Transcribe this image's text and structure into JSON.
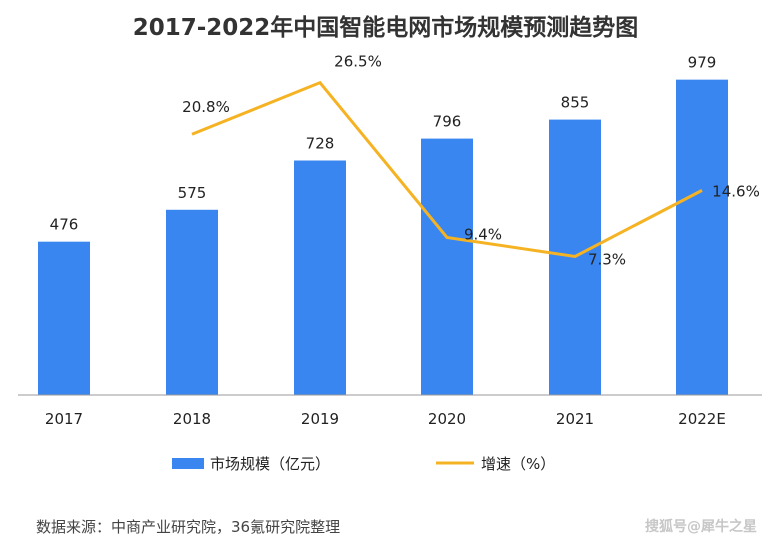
{
  "chart_data": {
    "type": "bar",
    "title": "2017-2022年中国智能电网市场规模预测趋势图",
    "categories": [
      "2017",
      "2018",
      "2019",
      "2020",
      "2021",
      "2022E"
    ],
    "series": [
      {
        "name": "市场规模（亿元）",
        "type": "bar",
        "values": [
          476,
          575,
          728,
          796,
          855,
          979
        ],
        "labels": [
          "476",
          "575",
          "728",
          "796",
          "855",
          "979"
        ],
        "color": "#3a86f0"
      },
      {
        "name": "增速（%）",
        "type": "line",
        "values": [
          null,
          20.8,
          26.5,
          9.4,
          7.3,
          14.6
        ],
        "labels": [
          "",
          "20.8%",
          "26.5%",
          "9.4%",
          "7.3%",
          "14.6%"
        ],
        "color": "#f5b323"
      }
    ],
    "bar_axis": {
      "min": 0,
      "max": 1040
    },
    "line_axis": {
      "min": -8,
      "max": 29
    },
    "grid": false,
    "legend_position": "bottom"
  },
  "footer": {
    "source": "数据来源：中商产业研究院，36氪研究院整理",
    "watermark": "搜狐号@犀牛之星"
  }
}
